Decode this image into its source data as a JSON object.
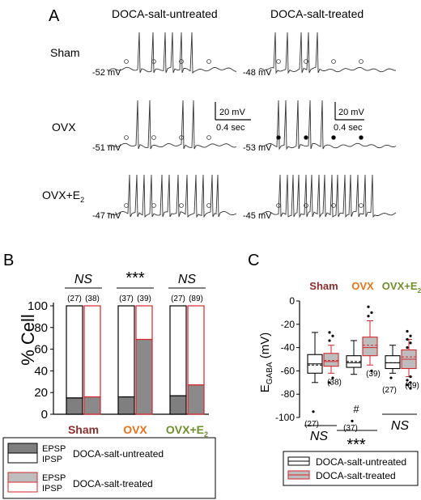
{
  "panel_labels": {
    "a": "A",
    "b": "B",
    "c": "C"
  },
  "panel_a": {
    "columns": [
      "DOCA-salt-untreated",
      "DOCA-salt-treated"
    ],
    "rows": [
      {
        "label": "Sham",
        "untreated_mv": "-52 mV",
        "treated_mv": "-48 mV"
      },
      {
        "label": "OVX",
        "untreated_mv": "-51 mV",
        "treated_mv": "-53 mV"
      },
      {
        "label": "OVX+E",
        "label_sub": "2",
        "untreated_mv": "-47 mV",
        "treated_mv": "-45 mV"
      }
    ],
    "scalebars": [
      {
        "v_label": "20 mV",
        "h_label": "0.4 sec"
      },
      {
        "v_label": "20 mV",
        "h_label": "0.4 sec"
      }
    ]
  },
  "chart_data": [
    {
      "type": "bar",
      "panel": "B",
      "ylabel": "% Cell",
      "ylim": [
        0,
        100
      ],
      "yticks": [
        "0",
        "20",
        "40",
        "60",
        "80",
        "100"
      ],
      "categories": [
        {
          "label": "Sham",
          "sub": "",
          "color": "#8b2e2e"
        },
        {
          "label": "OVX",
          "sub": "",
          "color": "#e8731a"
        },
        {
          "label": "OVX+E",
          "sub": "2",
          "color": "#6f8f2a"
        }
      ],
      "significance": [
        "NS",
        "***",
        "NS"
      ],
      "n_labels": [
        [
          "(27)",
          "(38)"
        ],
        [
          "(37)",
          "(39)"
        ],
        [
          "(27)",
          "(89)"
        ]
      ],
      "series": [
        {
          "group": "DOCA-salt-untreated",
          "epsp": [
            15,
            16,
            17
          ],
          "ipsp": [
            85,
            84,
            83
          ]
        },
        {
          "group": "DOCA-salt-treated",
          "epsp": [
            16,
            69,
            27
          ],
          "ipsp": [
            84,
            31,
            73
          ]
        }
      ],
      "legend": {
        "items": [
          {
            "epsp": "EPSP",
            "ipsp": "IPSP",
            "group": "DOCA-salt-untreated",
            "fill": "#7f7f7f",
            "edge": "#000000"
          },
          {
            "epsp": "EPSP",
            "ipsp": "IPSP",
            "group": "DOCA-salt-treated",
            "fill": "#bdbdbd",
            "edge": "#d6262c"
          }
        ]
      }
    },
    {
      "type": "box",
      "panel": "C",
      "ylabel": "E",
      "ylabel_sub": "GABA",
      "ylabel_unit": " (mV)",
      "ylim": [
        -100,
        0
      ],
      "yticks": [
        "0",
        "-20",
        "-40",
        "-60",
        "-80",
        "-100"
      ],
      "categories": [
        {
          "label": "Sham",
          "sub": "",
          "color": "#8b2e2e"
        },
        {
          "label": "OVX",
          "sub": "",
          "color": "#e8731a"
        },
        {
          "label": "OVX+E",
          "sub": "2",
          "color": "#6f8f2a"
        }
      ],
      "boxes": [
        {
          "group": "untreated",
          "cat": 0,
          "min": -70,
          "q1": -62,
          "median": -54,
          "mean": -55,
          "q3": -46,
          "max": -27,
          "outliers": [
            -95
          ],
          "n": "(27)"
        },
        {
          "group": "treated",
          "cat": 0,
          "min": -62,
          "q1": -56,
          "median": -52,
          "mean": -51,
          "q3": -45,
          "max": -38,
          "outliers": [
            -27,
            -30,
            -34,
            -66,
            -70
          ],
          "n": "(38)"
        },
        {
          "group": "untreated",
          "cat": 1,
          "min": -63,
          "q1": -57,
          "median": -53,
          "mean": -52,
          "q3": -47,
          "max": -34,
          "outliers": [
            -103
          ],
          "n": "(37)"
        },
        {
          "group": "treated",
          "cat": 1,
          "min": -55,
          "q1": -47,
          "median": -40,
          "mean": -38,
          "q3": -31,
          "max": -17,
          "outliers": [
            -5,
            -10,
            -13,
            -60
          ],
          "n": "(39)"
        },
        {
          "group": "untreated",
          "cat": 2,
          "min": -62,
          "q1": -58,
          "median": -53,
          "mean": -53,
          "q3": -47,
          "max": -38,
          "outliers": [
            -66
          ],
          "n": "(27)"
        },
        {
          "group": "treated",
          "cat": 2,
          "min": -65,
          "q1": -58,
          "median": -50,
          "mean": -48,
          "q3": -42,
          "max": -33,
          "outliers": [
            -26,
            -30,
            -33,
            -36,
            -40,
            -65,
            -68,
            -70,
            -72,
            -75
          ],
          "n": "(89)"
        }
      ],
      "annotations": {
        "hash": "#",
        "ns_left": "NS",
        "stars": "***",
        "ns_right": "NS"
      },
      "legend": [
        {
          "label": "DOCA-salt-untreated",
          "edge": "#000000",
          "fill": "#ffffff"
        },
        {
          "label": "DOCA-salt-treated",
          "edge": "#d6262c",
          "fill": "#bdbdbd"
        }
      ]
    }
  ]
}
